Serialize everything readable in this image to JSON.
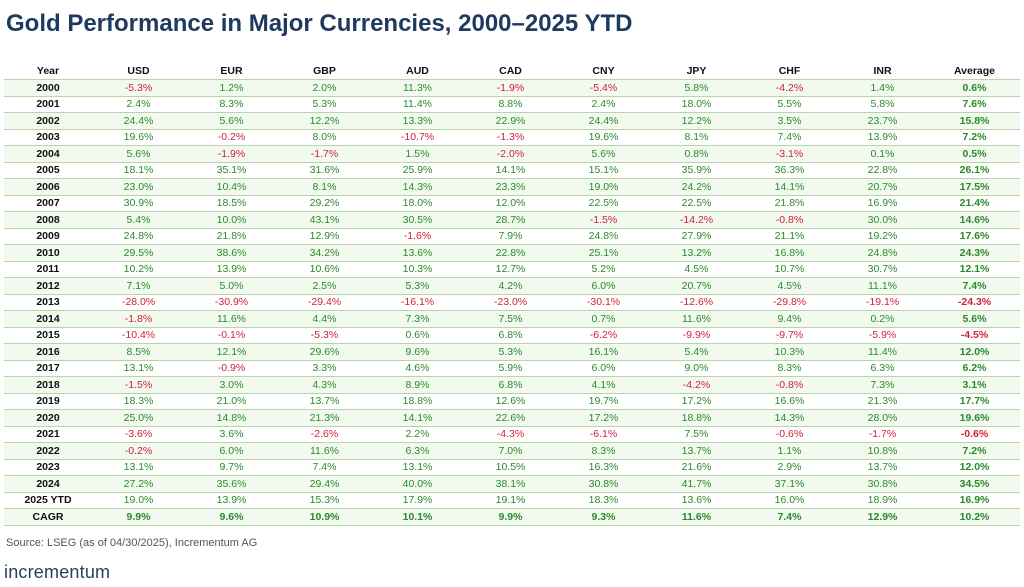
{
  "title": "Gold Performance in Major Currencies, 2000–2025 YTD",
  "columns": [
    "Year",
    "USD",
    "EUR",
    "GBP",
    "AUD",
    "CAD",
    "CNY",
    "JPY",
    "CHF",
    "INR",
    "Average"
  ],
  "rows": [
    {
      "year": "2000",
      "values": [
        "-5.3%",
        "1.2%",
        "2.0%",
        "11.3%",
        "-1.9%",
        "-5.4%",
        "5.8%",
        "-4.2%",
        "1.4%",
        "0.6%"
      ]
    },
    {
      "year": "2001",
      "values": [
        "2.4%",
        "8.3%",
        "5.3%",
        "11.4%",
        "8.8%",
        "2.4%",
        "18.0%",
        "5.5%",
        "5.8%",
        "7.6%"
      ]
    },
    {
      "year": "2002",
      "values": [
        "24.4%",
        "5.6%",
        "12.2%",
        "13.3%",
        "22.9%",
        "24.4%",
        "12.2%",
        "3.5%",
        "23.7%",
        "15.8%"
      ]
    },
    {
      "year": "2003",
      "values": [
        "19.6%",
        "-0.2%",
        "8.0%",
        "-10.7%",
        "-1.3%",
        "19.6%",
        "8.1%",
        "7.4%",
        "13.9%",
        "7.2%"
      ]
    },
    {
      "year": "2004",
      "values": [
        "5.6%",
        "-1.9%",
        "-1.7%",
        "1.5%",
        "-2.0%",
        "5.6%",
        "0.8%",
        "-3.1%",
        "0.1%",
        "0.5%"
      ]
    },
    {
      "year": "2005",
      "values": [
        "18.1%",
        "35.1%",
        "31.6%",
        "25.9%",
        "14.1%",
        "15.1%",
        "35.9%",
        "36.3%",
        "22.8%",
        "26.1%"
      ]
    },
    {
      "year": "2006",
      "values": [
        "23.0%",
        "10.4%",
        "8.1%",
        "14.3%",
        "23.3%",
        "19.0%",
        "24.2%",
        "14.1%",
        "20.7%",
        "17.5%"
      ]
    },
    {
      "year": "2007",
      "values": [
        "30.9%",
        "18.5%",
        "29.2%",
        "18.0%",
        "12.0%",
        "22.5%",
        "22.5%",
        "21.8%",
        "16.9%",
        "21.4%"
      ]
    },
    {
      "year": "2008",
      "values": [
        "5.4%",
        "10.0%",
        "43.1%",
        "30.5%",
        "28.7%",
        "-1.5%",
        "-14.2%",
        "-0.8%",
        "30.0%",
        "14.6%"
      ]
    },
    {
      "year": "2009",
      "values": [
        "24.8%",
        "21.8%",
        "12.9%",
        "-1.6%",
        "7.9%",
        "24.8%",
        "27.9%",
        "21.1%",
        "19.2%",
        "17.6%"
      ]
    },
    {
      "year": "2010",
      "values": [
        "29.5%",
        "38.6%",
        "34.2%",
        "13.6%",
        "22.8%",
        "25.1%",
        "13.2%",
        "16.8%",
        "24.8%",
        "24.3%"
      ]
    },
    {
      "year": "2011",
      "values": [
        "10.2%",
        "13.9%",
        "10.6%",
        "10.3%",
        "12.7%",
        "5.2%",
        "4.5%",
        "10.7%",
        "30.7%",
        "12.1%"
      ]
    },
    {
      "year": "2012",
      "values": [
        "7.1%",
        "5.0%",
        "2.5%",
        "5.3%",
        "4.2%",
        "6.0%",
        "20.7%",
        "4.5%",
        "11.1%",
        "7.4%"
      ]
    },
    {
      "year": "2013",
      "values": [
        "-28.0%",
        "-30.9%",
        "-29.4%",
        "-16.1%",
        "-23.0%",
        "-30.1%",
        "-12.6%",
        "-29.8%",
        "-19.1%",
        "-24.3%"
      ]
    },
    {
      "year": "2014",
      "values": [
        "-1.8%",
        "11.6%",
        "4.4%",
        "7.3%",
        "7.5%",
        "0.7%",
        "11.6%",
        "9.4%",
        "0.2%",
        "5.6%"
      ]
    },
    {
      "year": "2015",
      "values": [
        "-10.4%",
        "-0.1%",
        "-5.3%",
        "0.6%",
        "6.8%",
        "-6.2%",
        "-9.9%",
        "-9.7%",
        "-5.9%",
        "-4.5%"
      ]
    },
    {
      "year": "2016",
      "values": [
        "8.5%",
        "12.1%",
        "29.6%",
        "9.6%",
        "5.3%",
        "16.1%",
        "5.4%",
        "10.3%",
        "11.4%",
        "12.0%"
      ]
    },
    {
      "year": "2017",
      "values": [
        "13.1%",
        "-0.9%",
        "3.3%",
        "4.6%",
        "5.9%",
        "6.0%",
        "9.0%",
        "8.3%",
        "6.3%",
        "6.2%"
      ]
    },
    {
      "year": "2018",
      "values": [
        "-1.5%",
        "3.0%",
        "4.3%",
        "8.9%",
        "6.8%",
        "4.1%",
        "-4.2%",
        "-0.8%",
        "7.3%",
        "3.1%"
      ]
    },
    {
      "year": "2019",
      "values": [
        "18.3%",
        "21.0%",
        "13.7%",
        "18.8%",
        "12.6%",
        "19.7%",
        "17.2%",
        "16.6%",
        "21.3%",
        "17.7%"
      ]
    },
    {
      "year": "2020",
      "values": [
        "25.0%",
        "14.8%",
        "21.3%",
        "14.1%",
        "22.6%",
        "17.2%",
        "18.8%",
        "14.3%",
        "28.0%",
        "19.6%"
      ]
    },
    {
      "year": "2021",
      "values": [
        "-3.6%",
        "3.6%",
        "-2.6%",
        "2.2%",
        "-4.3%",
        "-6.1%",
        "7.5%",
        "-0.6%",
        "-1.7%",
        "-0.6%"
      ]
    },
    {
      "year": "2022",
      "values": [
        "-0.2%",
        "6.0%",
        "11.6%",
        "6.3%",
        "7.0%",
        "8.3%",
        "13.7%",
        "1.1%",
        "10.8%",
        "7.2%"
      ]
    },
    {
      "year": "2023",
      "values": [
        "13.1%",
        "9.7%",
        "7.4%",
        "13.1%",
        "10.5%",
        "16.3%",
        "21.6%",
        "2.9%",
        "13.7%",
        "12.0%"
      ]
    },
    {
      "year": "2024",
      "values": [
        "27.2%",
        "35.6%",
        "29.4%",
        "40.0%",
        "38.1%",
        "30.8%",
        "41.7%",
        "37.1%",
        "30.8%",
        "34.5%"
      ]
    },
    {
      "year": "2025 YTD",
      "values": [
        "19.0%",
        "13.9%",
        "15.3%",
        "17.9%",
        "19.1%",
        "18.3%",
        "13.6%",
        "16.0%",
        "18.9%",
        "16.9%"
      ]
    },
    {
      "year": "CAGR",
      "values": [
        "9.9%",
        "9.6%",
        "10.9%",
        "10.1%",
        "9.9%",
        "9.3%",
        "11.6%",
        "7.4%",
        "12.9%",
        "10.2%"
      ]
    }
  ],
  "source": "Source: LSEG (as of 04/30/2025), Incrementum AG",
  "logo_text": "incrementum",
  "colors": {
    "positive": "#2a8a2a",
    "negative": "#d0213a",
    "title": "#1f3a5f",
    "stripe": "#f2f9ee"
  }
}
